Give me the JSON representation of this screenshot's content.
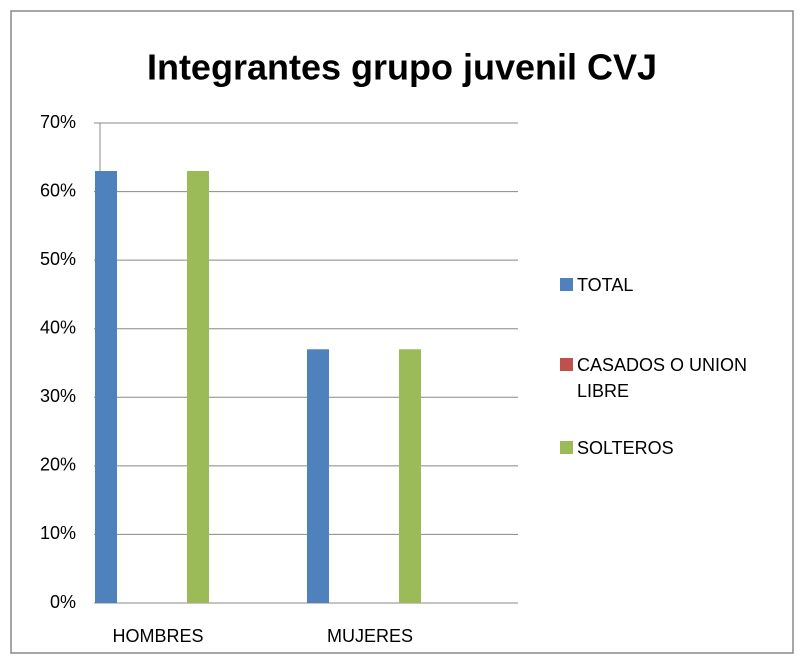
{
  "chart_data": {
    "type": "bar",
    "title": "Integrantes grupo juvenil CVJ",
    "categories": [
      "HOMBRES",
      "MUJERES"
    ],
    "series": [
      {
        "name": "TOTAL",
        "color": "#4f81bd",
        "values": [
          63,
          37
        ]
      },
      {
        "name": "CASADOS O UNION LIBRE",
        "color": "#c0504d",
        "values": [
          0,
          0
        ]
      },
      {
        "name": "SOLTEROS",
        "color": "#9bbb59",
        "values": [
          63,
          37
        ]
      }
    ],
    "ylim": [
      0,
      70
    ],
    "yticks": [
      {
        "value": 0,
        "label": "0%"
      },
      {
        "value": 10,
        "label": "10%"
      },
      {
        "value": 20,
        "label": "20%"
      },
      {
        "value": 30,
        "label": "30%"
      },
      {
        "value": 40,
        "label": "40%"
      },
      {
        "value": 50,
        "label": "50%"
      },
      {
        "value": 60,
        "label": "60%"
      },
      {
        "value": 70,
        "label": "70%"
      }
    ],
    "grid": true,
    "legend": "right"
  }
}
